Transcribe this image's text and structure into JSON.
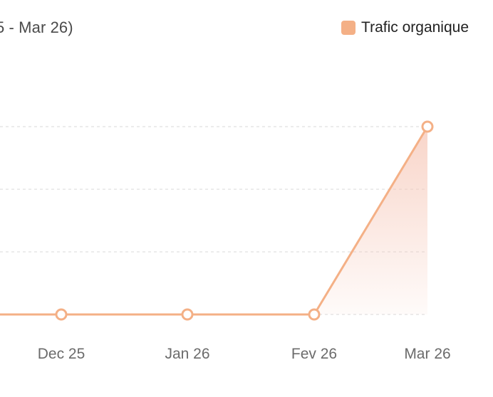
{
  "chart_data": {
    "type": "area",
    "title": "5 - Mar 26)",
    "categories": [
      "Dec 25",
      "Jan 26",
      "Fev 26",
      "Mar 26"
    ],
    "series": [
      {
        "name": "Trafic organique",
        "values": [
          0,
          0,
          0,
          3
        ]
      }
    ],
    "ylim": [
      0,
      3
    ],
    "grid": true,
    "legend_position": "top-right",
    "xlabel": "",
    "ylabel": ""
  },
  "colors": {
    "series": "#f4b086",
    "fill": "#f8d8cb",
    "grid": "#d9d9d9",
    "point_fill": "#ffffff"
  }
}
